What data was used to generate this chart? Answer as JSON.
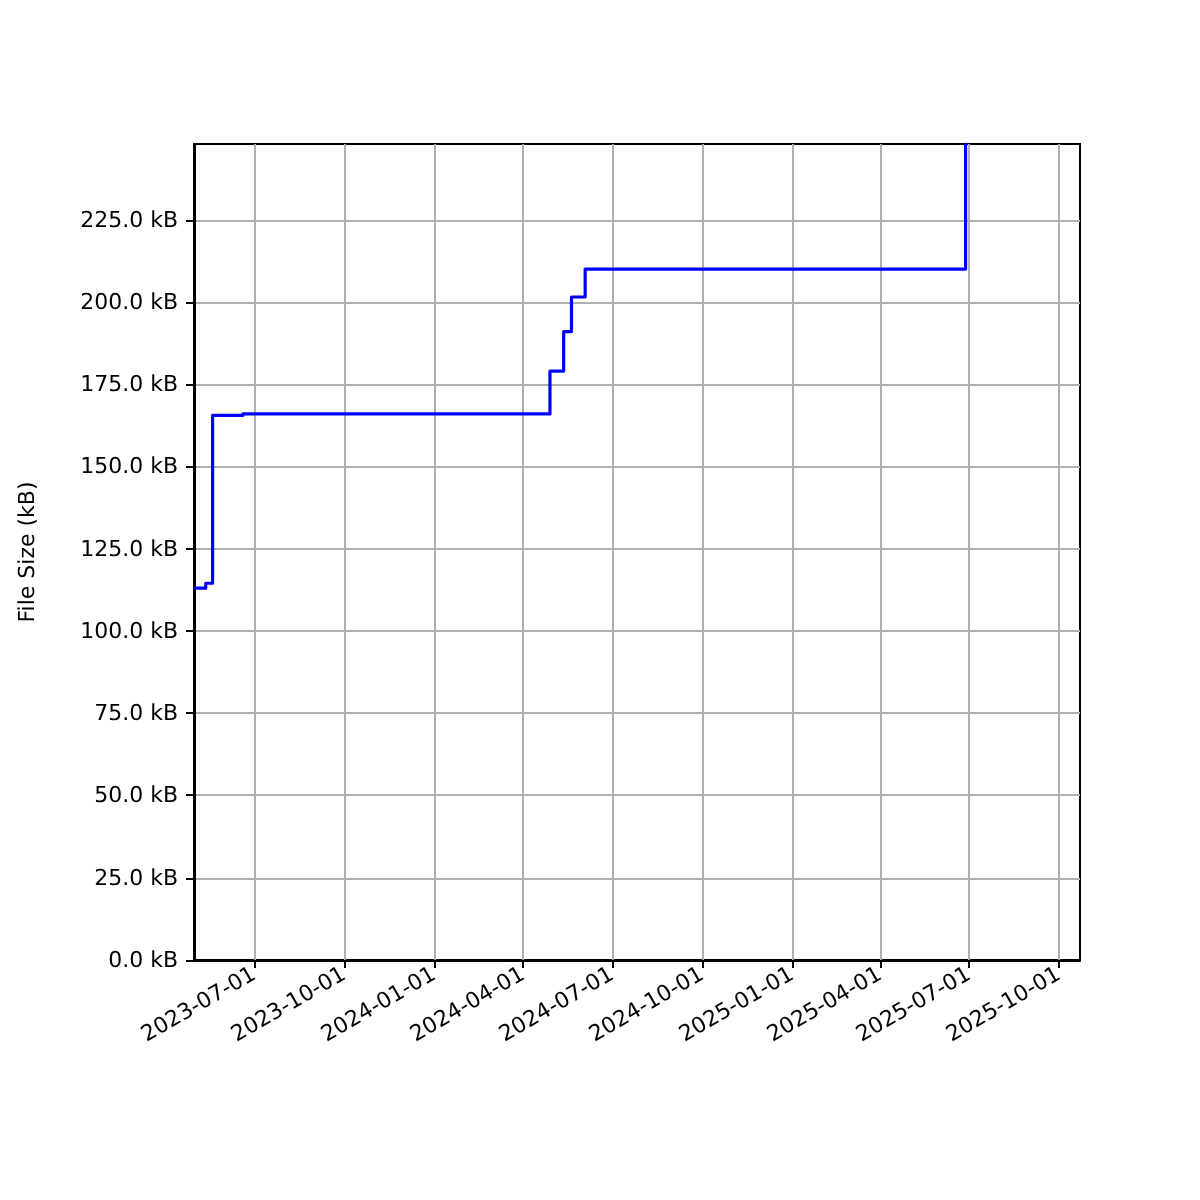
{
  "chart_data": {
    "type": "step",
    "ylabel": "File Size (kB)",
    "x": [
      "2023-05-02",
      "2023-05-13",
      "2023-05-20",
      "2023-06-20",
      "2024-04-29",
      "2024-05-13",
      "2024-05-21",
      "2024-06-04",
      "2025-06-28"
    ],
    "series": [
      {
        "color": "#0000ff",
        "values": [
          113,
          114.5,
          165.5,
          166,
          179,
          191,
          201.5,
          210,
          248
        ]
      }
    ],
    "xlim": [
      "2023-05-01",
      "2025-10-23"
    ],
    "ylim": [
      0,
      248
    ],
    "xticks": [
      "2023-07-01",
      "2023-10-01",
      "2024-01-01",
      "2024-04-01",
      "2024-07-01",
      "2024-10-01",
      "2025-01-01",
      "2025-04-01",
      "2025-07-01",
      "2025-10-01"
    ],
    "yticks": [
      {
        "value": 0,
        "label": "0.0 kB"
      },
      {
        "value": 25,
        "label": "25.0 kB"
      },
      {
        "value": 50,
        "label": "50.0 kB"
      },
      {
        "value": 75,
        "label": "75.0 kB"
      },
      {
        "value": 100,
        "label": "100.0 kB"
      },
      {
        "value": 125,
        "label": "125.0 kB"
      },
      {
        "value": 150,
        "label": "150.0 kB"
      },
      {
        "value": 175,
        "label": "175.0 kB"
      },
      {
        "value": 200,
        "label": "200.0 kB"
      },
      {
        "value": 225,
        "label": "225.0 kB"
      }
    ],
    "grid": true,
    "marker": "none"
  }
}
